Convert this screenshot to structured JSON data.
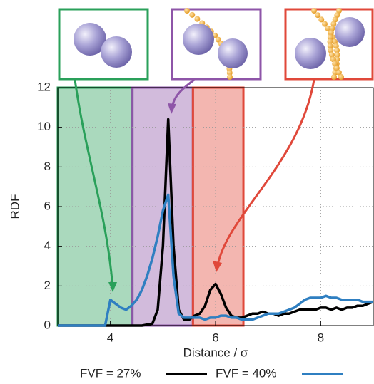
{
  "chart_data": {
    "type": "line",
    "x_label": "Distance / σ",
    "y_label": "RDF",
    "x": [
      3.0,
      3.1,
      3.2,
      3.3,
      3.4,
      3.5,
      3.6,
      3.7,
      3.8,
      3.9,
      4.0,
      4.1,
      4.2,
      4.3,
      4.4,
      4.5,
      4.6,
      4.7,
      4.8,
      4.9,
      5.0,
      5.1,
      5.2,
      5.3,
      5.4,
      5.5,
      5.6,
      5.7,
      5.8,
      5.9,
      6.0,
      6.1,
      6.2,
      6.3,
      6.4,
      6.5,
      6.6,
      6.7,
      6.8,
      6.9,
      7.0,
      7.1,
      7.2,
      7.3,
      7.4,
      7.5,
      7.6,
      7.7,
      7.8,
      7.9,
      8.0,
      8.1,
      8.2,
      8.3,
      8.4,
      8.5,
      8.6,
      8.7,
      8.8,
      8.9,
      9.0
    ],
    "series": [
      {
        "name": "FVF = 27%",
        "color": "#000000",
        "values": [
          0,
          0,
          0,
          0,
          0,
          0,
          0,
          0,
          0,
          0,
          0,
          0,
          0,
          0,
          0,
          0,
          0,
          0.05,
          0.1,
          0.8,
          4,
          10.4,
          4,
          0.8,
          0.3,
          0.3,
          0.5,
          0.6,
          1.0,
          1.8,
          2.1,
          1.6,
          0.9,
          0.5,
          0.4,
          0.4,
          0.5,
          0.6,
          0.6,
          0.7,
          0.6,
          0.6,
          0.5,
          0.6,
          0.6,
          0.7,
          0.8,
          0.8,
          0.8,
          0.8,
          0.9,
          0.9,
          0.8,
          0.9,
          0.8,
          0.9,
          0.9,
          1.0,
          1.0,
          1.1,
          1.2
        ]
      },
      {
        "name": "FVF = 40%",
        "color": "#2f7fc1",
        "values": [
          0,
          0,
          0,
          0,
          0,
          0,
          0,
          0,
          0,
          0,
          1.3,
          1.1,
          0.9,
          0.8,
          1.0,
          1.3,
          1.8,
          2.5,
          3.4,
          4.5,
          5.8,
          6.6,
          2.5,
          0.6,
          0.4,
          0.4,
          0.4,
          0.4,
          0.3,
          0.4,
          0.4,
          0.5,
          0.5,
          0.4,
          0.4,
          0.3,
          0.3,
          0.3,
          0.4,
          0.5,
          0.6,
          0.6,
          0.6,
          0.7,
          0.8,
          0.9,
          1.1,
          1.3,
          1.4,
          1.4,
          1.4,
          1.5,
          1.4,
          1.4,
          1.3,
          1.3,
          1.3,
          1.3,
          1.2,
          1.2,
          1.2
        ]
      }
    ],
    "regions": [
      {
        "xrange": [
          3,
          4.42
        ],
        "color": "#2aa05a"
      },
      {
        "xrange": [
          4.42,
          5.57
        ],
        "color": "#8e55a8"
      },
      {
        "xrange": [
          5.57,
          6.53
        ],
        "color": "#e0483a"
      }
    ],
    "xlim": [
      3,
      9
    ],
    "xticks": [
      4,
      6,
      8
    ],
    "ylim": [
      0,
      12
    ],
    "yticks": [
      0,
      2,
      4,
      6,
      8,
      10,
      12
    ],
    "grid": true
  }
}
